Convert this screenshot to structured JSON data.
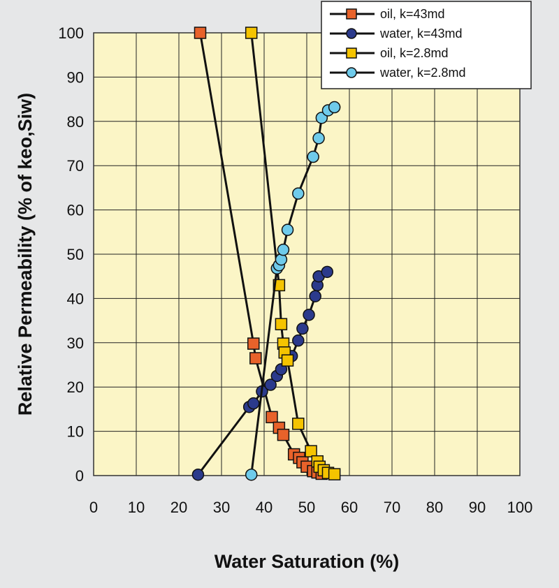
{
  "chart_data": {
    "type": "scatter",
    "title": "",
    "xlabel": "Water Saturation (%)",
    "ylabel": "Relative Permeability (% of keo,Siw)",
    "xlim": [
      0,
      100
    ],
    "ylim": [
      0,
      100
    ],
    "x_ticks": [
      0,
      10,
      20,
      30,
      40,
      50,
      60,
      70,
      80,
      90,
      100
    ],
    "y_ticks": [
      0,
      10,
      20,
      30,
      40,
      50,
      60,
      70,
      80,
      90,
      100
    ],
    "grid": true,
    "legend_position": "top-right",
    "plot_background": "#fbf5c6",
    "series": [
      {
        "name": "oil, k=43md",
        "marker": "square",
        "color": "#e8622a",
        "points": [
          [
            25,
            100
          ],
          [
            37.5,
            29.8
          ],
          [
            38,
            26.5
          ],
          [
            41.8,
            13.2
          ],
          [
            43.5,
            10.8
          ],
          [
            44.5,
            9.2
          ],
          [
            47,
            4.8
          ],
          [
            48.2,
            4
          ],
          [
            49,
            3
          ],
          [
            50,
            2
          ],
          [
            51.5,
            1
          ],
          [
            52.5,
            0.7
          ],
          [
            53.5,
            0.4
          ]
        ]
      },
      {
        "name": "water, k=43md",
        "marker": "circle",
        "color": "#2b3a8c",
        "points": [
          [
            24.5,
            0.2
          ],
          [
            36.5,
            15.5
          ],
          [
            37.5,
            16.3
          ],
          [
            39.5,
            19
          ],
          [
            41.5,
            20.5
          ],
          [
            43,
            22.5
          ],
          [
            44,
            24
          ],
          [
            46.5,
            27
          ],
          [
            48,
            30.5
          ],
          [
            49,
            33.2
          ],
          [
            50.5,
            36.3
          ],
          [
            52,
            40.5
          ],
          [
            52.5,
            43
          ],
          [
            52.8,
            45
          ],
          [
            54.8,
            46
          ]
        ]
      },
      {
        "name": "oil, k=2.8md",
        "marker": "square",
        "color": "#f5c400",
        "points": [
          [
            37,
            100
          ],
          [
            43.5,
            43
          ],
          [
            44,
            34.2
          ],
          [
            44.5,
            29.8
          ],
          [
            44.8,
            27.8
          ],
          [
            45.5,
            26
          ],
          [
            48,
            11.7
          ],
          [
            51,
            5.5
          ],
          [
            52.5,
            3.2
          ],
          [
            53,
            2
          ],
          [
            54,
            1.2
          ],
          [
            55,
            0.6
          ],
          [
            56.5,
            0.3
          ]
        ]
      },
      {
        "name": "water, k=2.8md",
        "marker": "circle",
        "color": "#6fcbeb",
        "points": [
          [
            37,
            0.2
          ],
          [
            43,
            46.8
          ],
          [
            43.5,
            47.5
          ],
          [
            44,
            48.8
          ],
          [
            44.5,
            51
          ],
          [
            45.5,
            55.5
          ],
          [
            48,
            63.7
          ],
          [
            51.5,
            72
          ],
          [
            52.8,
            76.2
          ],
          [
            53.5,
            80.8
          ],
          [
            55,
            82.5
          ],
          [
            56.5,
            83.2
          ]
        ]
      }
    ]
  }
}
